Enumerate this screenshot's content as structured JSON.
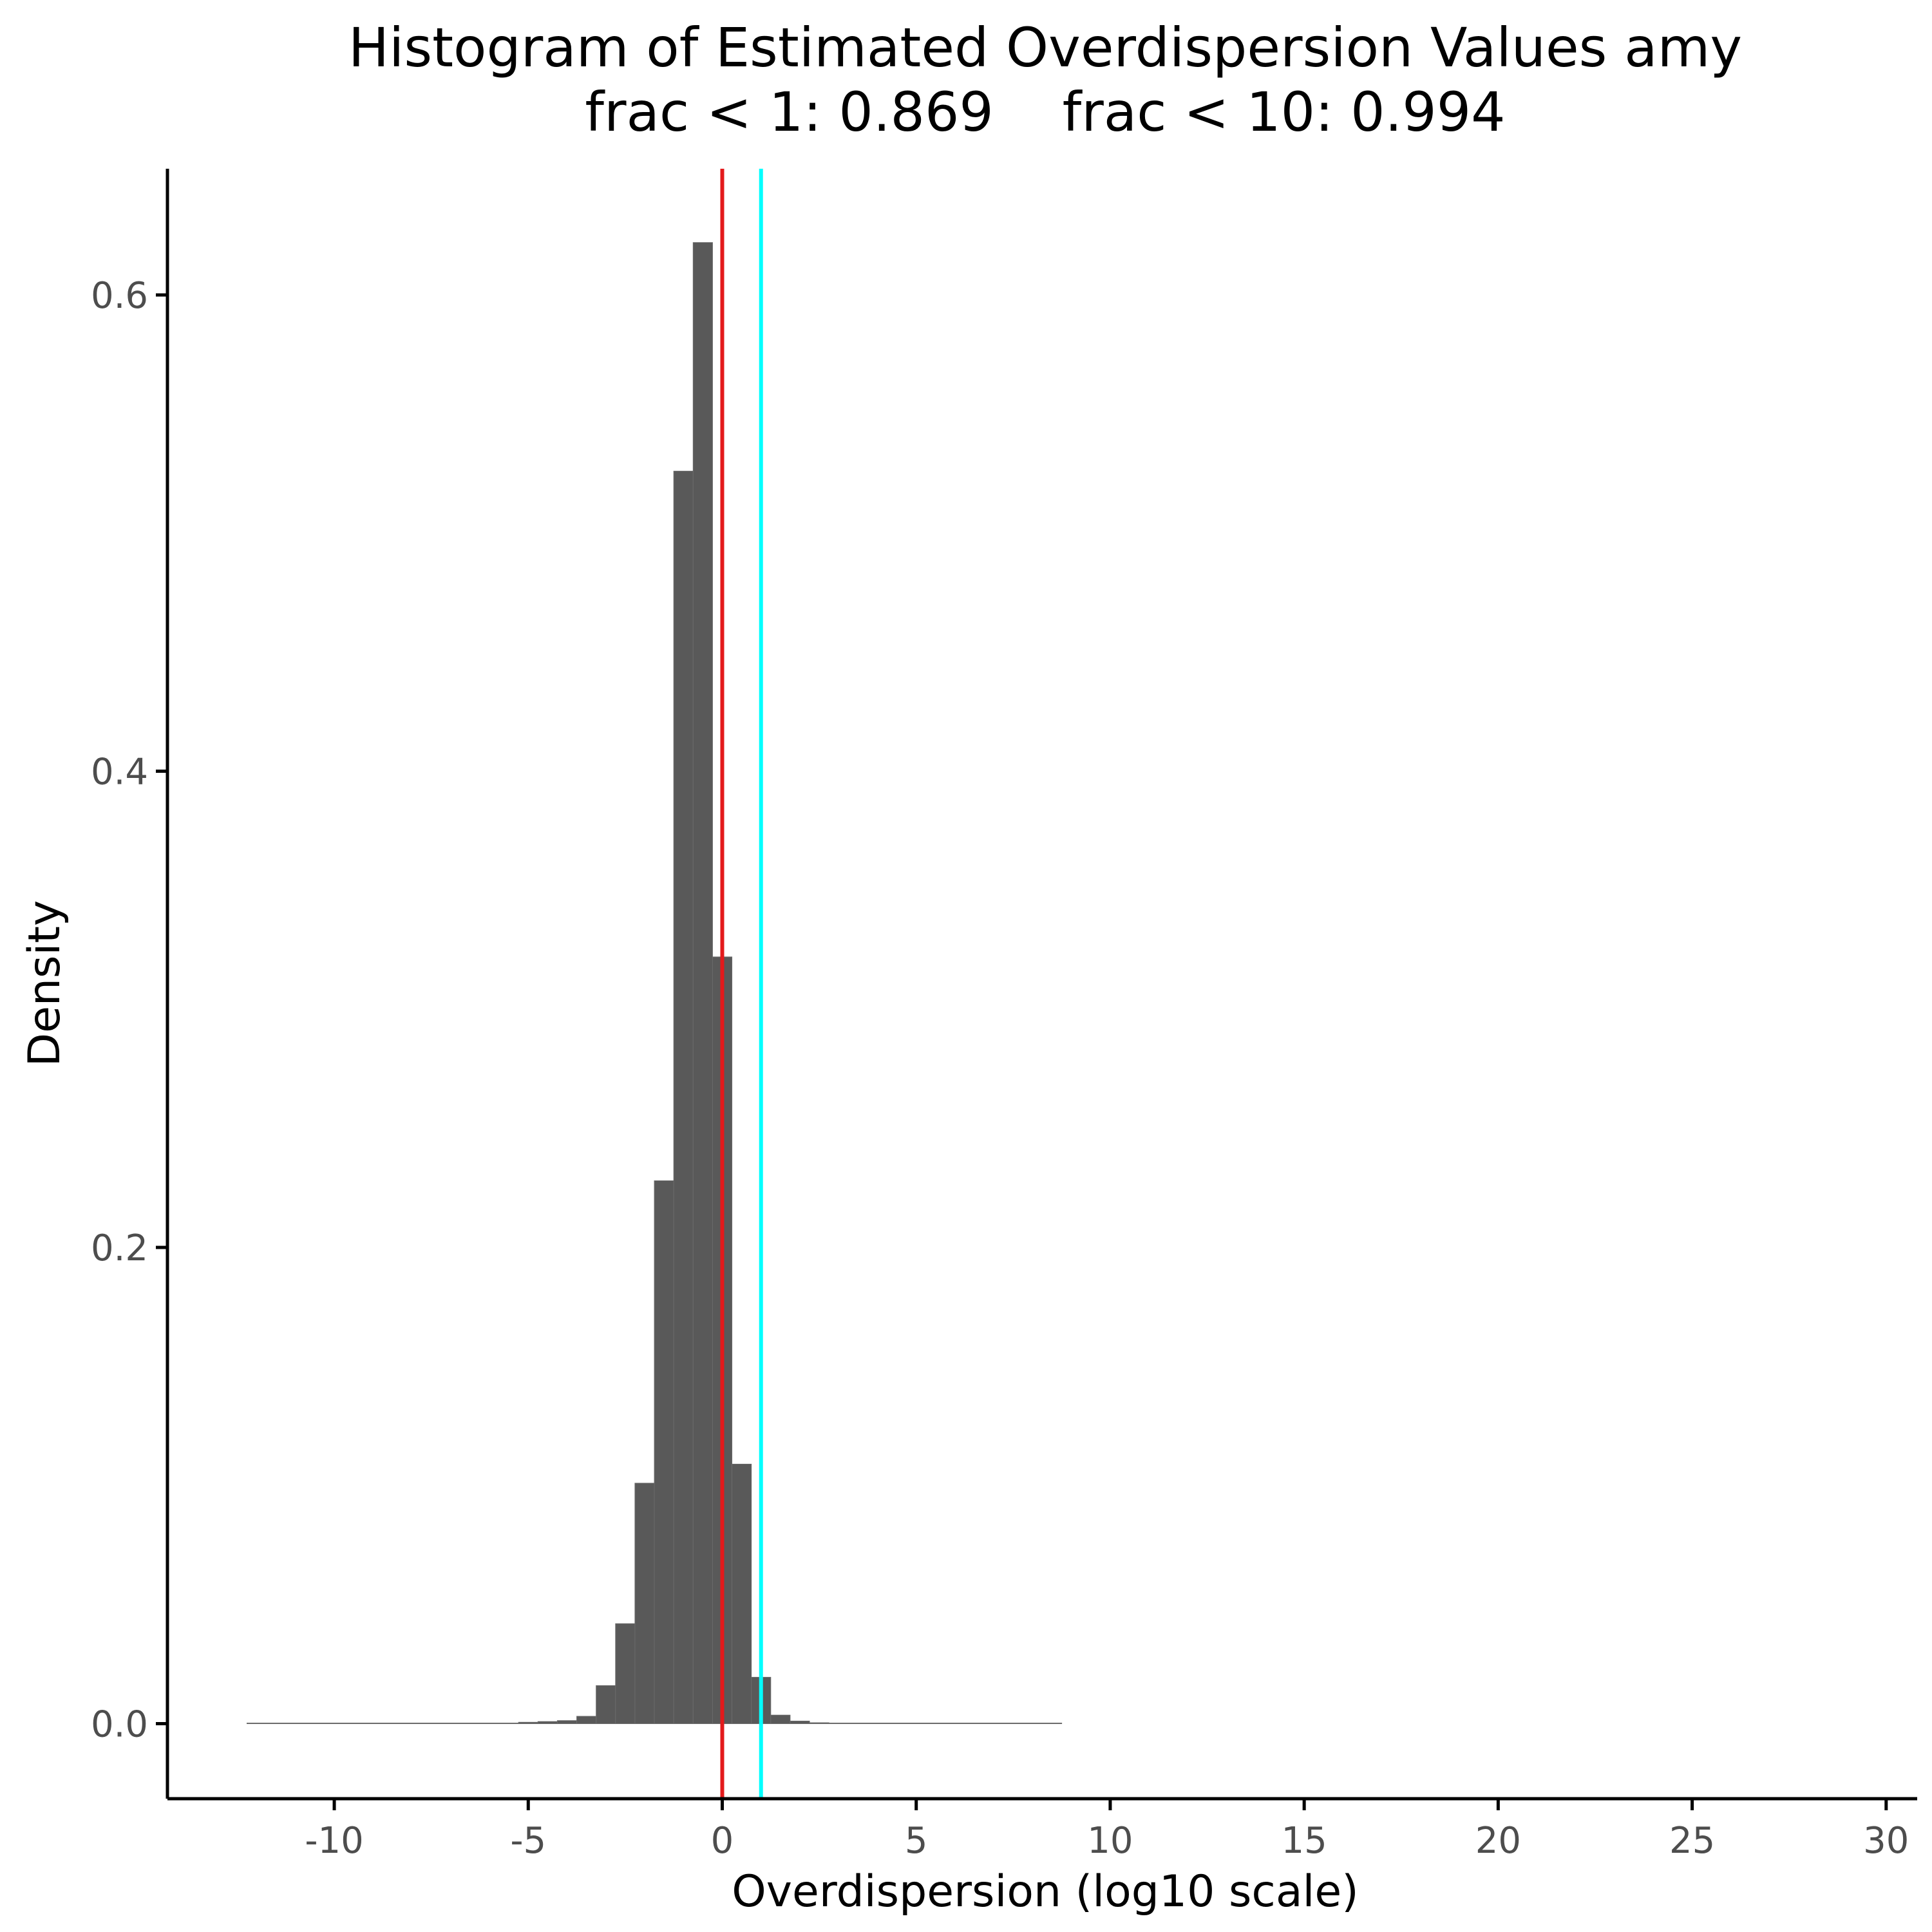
{
  "chart_data": {
    "type": "bar",
    "title": "Histogram of Estimated Overdispersion Values amy",
    "subtitle": "frac < 1: 0.869    frac < 10: 0.994",
    "xlabel": "Overdispersion (log10 scale)",
    "ylabel": "Density",
    "xlim": [
      -14.3,
      30.8
    ],
    "ylim": [
      -0.0315,
      0.653
    ],
    "x_ticks": [
      {
        "value": -10,
        "label": "-10"
      },
      {
        "value": -5,
        "label": "-5"
      },
      {
        "value": 0,
        "label": "0"
      },
      {
        "value": 5,
        "label": "5"
      },
      {
        "value": 10,
        "label": "10"
      },
      {
        "value": 15,
        "label": "15"
      },
      {
        "value": 20,
        "label": "20"
      },
      {
        "value": 25,
        "label": "25"
      },
      {
        "value": 30,
        "label": "30"
      }
    ],
    "y_ticks": [
      {
        "value": 0.0,
        "label": "0.0"
      },
      {
        "value": 0.2,
        "label": "0.2"
      },
      {
        "value": 0.4,
        "label": "0.4"
      },
      {
        "value": 0.6,
        "label": "0.6"
      }
    ],
    "grid": false,
    "bins": [
      {
        "x0": -12.25,
        "x1": -5.25,
        "density": 0.0002
      },
      {
        "x0": -5.25,
        "x1": -4.75,
        "density": 0.0006
      },
      {
        "x0": -4.75,
        "x1": -4.25,
        "density": 0.0009
      },
      {
        "x0": -4.25,
        "x1": -3.75,
        "density": 0.0013
      },
      {
        "x0": -3.75,
        "x1": -3.25,
        "density": 0.0031
      },
      {
        "x0": -3.25,
        "x1": -2.75,
        "density": 0.016
      },
      {
        "x0": -2.75,
        "x1": -2.25,
        "density": 0.042
      },
      {
        "x0": -2.25,
        "x1": -1.75,
        "density": 0.101
      },
      {
        "x0": -1.75,
        "x1": -1.25,
        "density": 0.228
      },
      {
        "x0": -1.25,
        "x1": -0.75,
        "density": 0.526
      },
      {
        "x0": -0.75,
        "x1": -0.25,
        "density": 0.622
      },
      {
        "x0": -0.25,
        "x1": 0.25,
        "density": 0.322
      },
      {
        "x0": 0.25,
        "x1": 0.75,
        "density": 0.109
      },
      {
        "x0": 0.75,
        "x1": 1.25,
        "density": 0.0195
      },
      {
        "x0": 1.25,
        "x1": 1.75,
        "density": 0.0036
      },
      {
        "x0": 1.75,
        "x1": 2.25,
        "density": 0.0011
      },
      {
        "x0": 2.25,
        "x1": 2.75,
        "density": 0.0004
      },
      {
        "x0": 2.75,
        "x1": 8.75,
        "density": 0.0001
      }
    ],
    "reference_lines": [
      {
        "x": 0,
        "color": "#e31a1c"
      },
      {
        "x": 1,
        "color": "#00ffff"
      }
    ]
  }
}
